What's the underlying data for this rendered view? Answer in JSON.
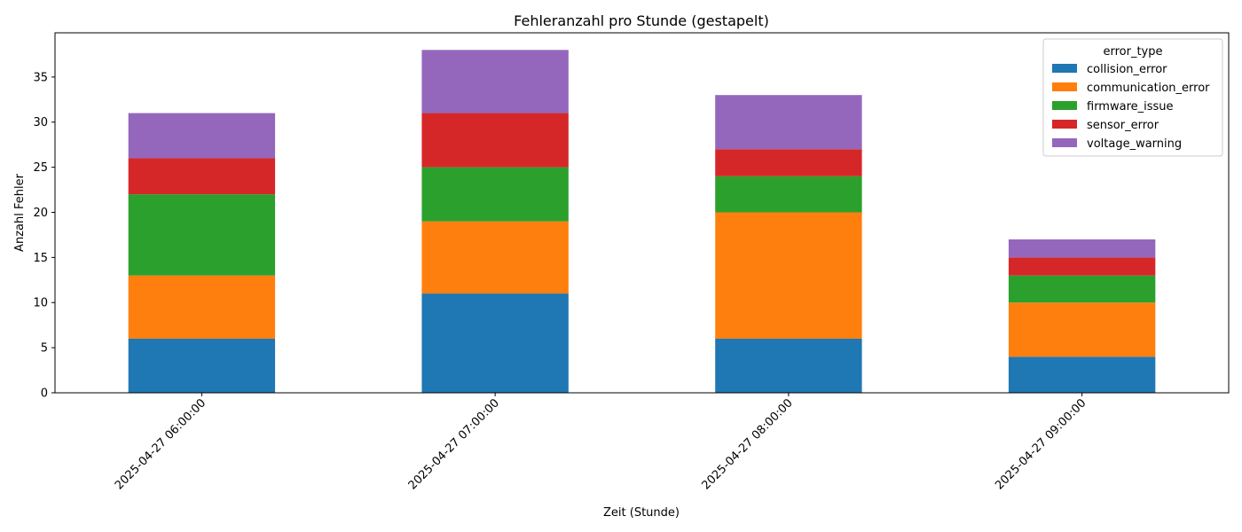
{
  "chart_data": {
    "type": "bar",
    "stacked": true,
    "title": "Fehleranzahl pro Stunde (gestapelt)",
    "xlabel": "Zeit (Stunde)",
    "ylabel": "Anzahl Fehler",
    "categories": [
      "2025-04-27 06:00:00",
      "2025-04-27 07:00:00",
      "2025-04-27 08:00:00",
      "2025-04-27 09:00:00"
    ],
    "ylim": [
      0,
      39.9
    ],
    "yticks": [
      0,
      5,
      10,
      15,
      20,
      25,
      30,
      35
    ],
    "grid": false,
    "legend": {
      "title": "error_type",
      "placement": "top-right"
    },
    "series": [
      {
        "name": "collision_error",
        "color": "#1f77b4",
        "values": [
          6,
          11,
          6,
          4
        ]
      },
      {
        "name": "communication_error",
        "color": "#ff7f0e",
        "values": [
          7,
          8,
          14,
          6
        ]
      },
      {
        "name": "firmware_issue",
        "color": "#2ca02c",
        "values": [
          9,
          6,
          4,
          3
        ]
      },
      {
        "name": "sensor_error",
        "color": "#d62728",
        "values": [
          4,
          6,
          3,
          2
        ]
      },
      {
        "name": "voltage_warning",
        "color": "#9467bd",
        "values": [
          5,
          7,
          6,
          2
        ]
      }
    ]
  }
}
